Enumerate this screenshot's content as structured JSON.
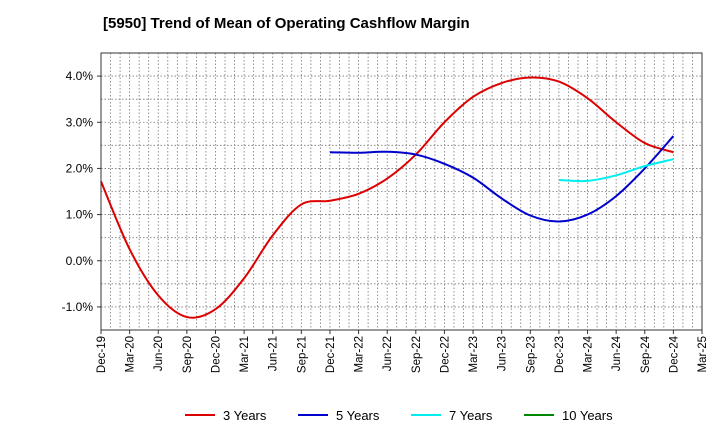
{
  "chart_data": {
    "type": "line",
    "title": "[5950]  Trend of Mean of Operating Cashflow Margin",
    "xlabel": "",
    "ylabel": "",
    "x_ticks": [
      "Dec-19",
      "Mar-20",
      "Jun-20",
      "Sep-20",
      "Dec-20",
      "Mar-21",
      "Jun-21",
      "Sep-21",
      "Dec-21",
      "Mar-22",
      "Jun-22",
      "Sep-22",
      "Dec-22",
      "Mar-23",
      "Jun-23",
      "Sep-23",
      "Dec-23",
      "Mar-24",
      "Jun-24",
      "Sep-24",
      "Dec-24",
      "Mar-25"
    ],
    "y_ticks": [
      "4.0%",
      "3.0%",
      "2.0%",
      "1.0%",
      "0.0%",
      "-1.0%"
    ],
    "y_tick_values": [
      4.0,
      3.0,
      2.0,
      1.0,
      0.0,
      -1.0
    ],
    "ylim": [
      -1.5,
      4.5
    ],
    "grid": true,
    "legend_position": "bottom",
    "series": [
      {
        "name": "3 Years",
        "color": "#dd0000",
        "x": [
          "Dec-19",
          "Mar-20",
          "Jun-20",
          "Sep-20",
          "Dec-20",
          "Mar-21",
          "Jun-21",
          "Sep-21",
          "Dec-21",
          "Mar-22",
          "Jun-22",
          "Sep-22",
          "Dec-22",
          "Mar-23",
          "Jun-23",
          "Sep-23",
          "Dec-23",
          "Mar-24",
          "Jun-24",
          "Sep-24",
          "Dec-24"
        ],
        "values": [
          1.72,
          0.25,
          -0.75,
          -1.22,
          -1.05,
          -0.38,
          0.55,
          1.22,
          1.3,
          1.45,
          1.78,
          2.3,
          3.0,
          3.55,
          3.85,
          3.97,
          3.88,
          3.52,
          3.0,
          2.55,
          2.35
        ]
      },
      {
        "name": "5 Years",
        "color": "#0000cc",
        "x": [
          "Dec-21",
          "Mar-22",
          "Jun-22",
          "Sep-22",
          "Dec-22",
          "Mar-23",
          "Jun-23",
          "Sep-23",
          "Dec-23",
          "Mar-24",
          "Jun-24",
          "Sep-24",
          "Dec-24"
        ],
        "values": [
          2.35,
          2.34,
          2.36,
          2.3,
          2.1,
          1.8,
          1.35,
          0.98,
          0.85,
          1.0,
          1.4,
          2.0,
          2.7
        ]
      },
      {
        "name": "7 Years",
        "color": "#00eeee",
        "x": [
          "Dec-23",
          "Mar-24",
          "Jun-24",
          "Sep-24",
          "Dec-24"
        ],
        "values": [
          1.75,
          1.73,
          1.85,
          2.05,
          2.2
        ]
      },
      {
        "name": "10 Years",
        "color": "#008800",
        "x": [],
        "values": []
      }
    ]
  }
}
